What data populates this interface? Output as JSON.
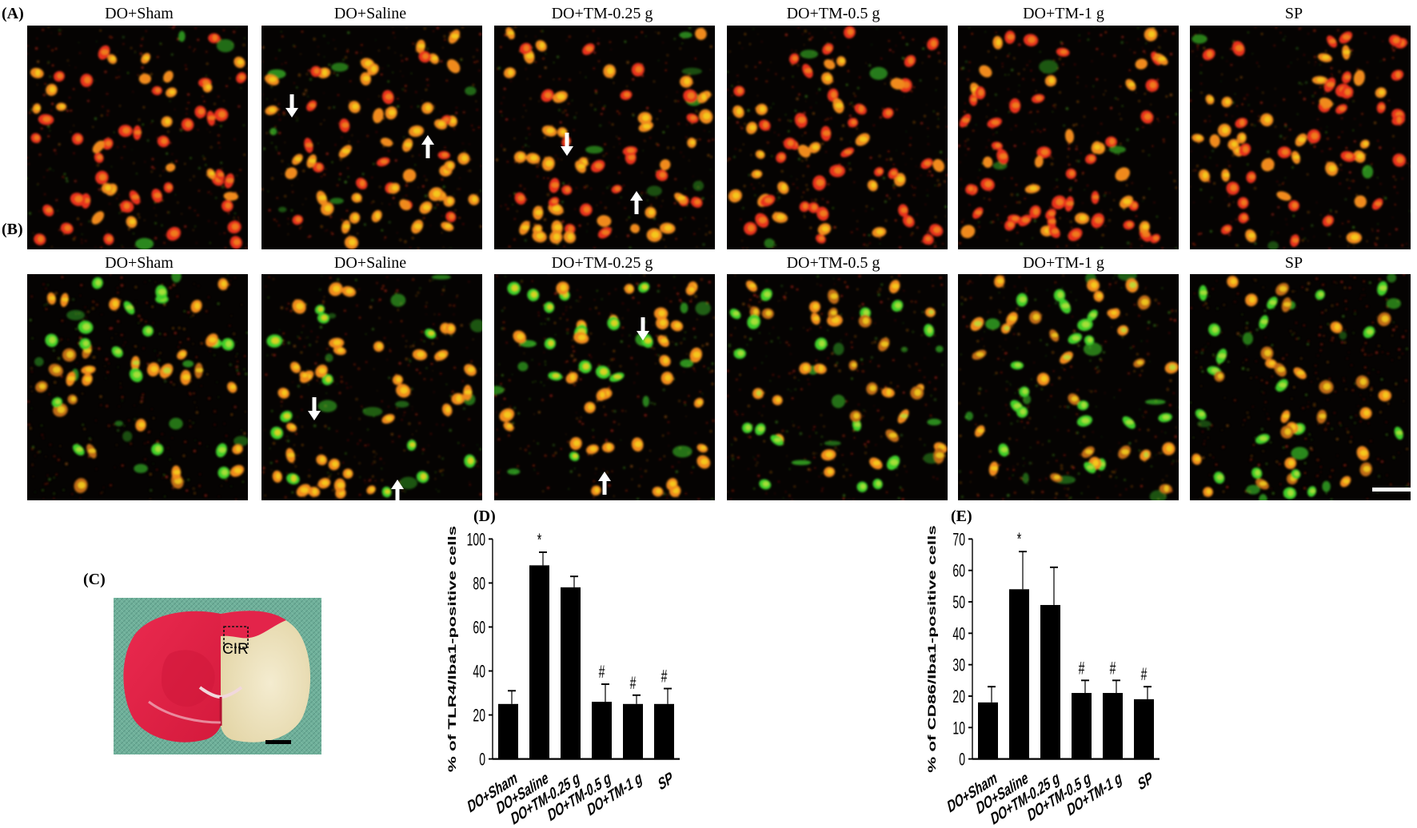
{
  "figure": {
    "panels": {
      "A": "(A)",
      "B": "(B)",
      "C": "(C)",
      "D": "(D)",
      "E": "(E)"
    },
    "row_a_titles": [
      "DO+Sham",
      "DO+Saline",
      "DO+TM-0.25 g",
      "DO+TM-0.5 g",
      "DO+TM-1 g",
      "SP"
    ],
    "row_b_titles": [
      "DO+Sham",
      "DO+Saline",
      "DO+TM-0.25 g",
      "DO+TM-0.5 g",
      "DO+TM-1 g",
      "SP"
    ],
    "brain_label": "CIR",
    "colors": {
      "red": "#e8321a",
      "orange": "#f08a1c",
      "yellow": "#f5d21e",
      "green": "#3fcf2a",
      "tissue_red": "#e01e43",
      "tissue_pale": "#ede3bf",
      "mat_green": "#6fb09a"
    }
  },
  "chart_data": [
    {
      "type": "bar",
      "title": "",
      "ylabel": "% of TLR4/Iba1-positive cells",
      "xlabel": "",
      "categories": [
        "DO+Sham",
        "DO+Saline",
        "DO+TM-0.25 g",
        "DO+TM-0.5 g",
        "DO+TM-1 g",
        "SP"
      ],
      "values": [
        25,
        88,
        78,
        26,
        25,
        25
      ],
      "errors": [
        6,
        6,
        5,
        8,
        4,
        7
      ],
      "annotations": [
        "",
        "*",
        "",
        "#",
        "#",
        "#"
      ],
      "ylim": [
        0,
        100
      ],
      "yticks": [
        "0",
        "20",
        "40",
        "60",
        "80",
        "100"
      ],
      "grid": false
    },
    {
      "type": "bar",
      "title": "",
      "ylabel": "% of CD86/Iba1-positive cells",
      "xlabel": "",
      "categories": [
        "DO+Sham",
        "DO+Saline",
        "DO+TM-0.25 g",
        "DO+TM-0.5 g",
        "DO+TM-1 g",
        "SP"
      ],
      "values": [
        18,
        54,
        49,
        21,
        21,
        19
      ],
      "errors": [
        5,
        12,
        12,
        4,
        4,
        4
      ],
      "annotations": [
        "",
        "*",
        "",
        "#",
        "#",
        "#"
      ],
      "ylim": [
        0,
        70
      ],
      "yticks": [
        "0",
        "10",
        "20",
        "30",
        "40",
        "50",
        "60",
        "70"
      ],
      "grid": false
    }
  ]
}
